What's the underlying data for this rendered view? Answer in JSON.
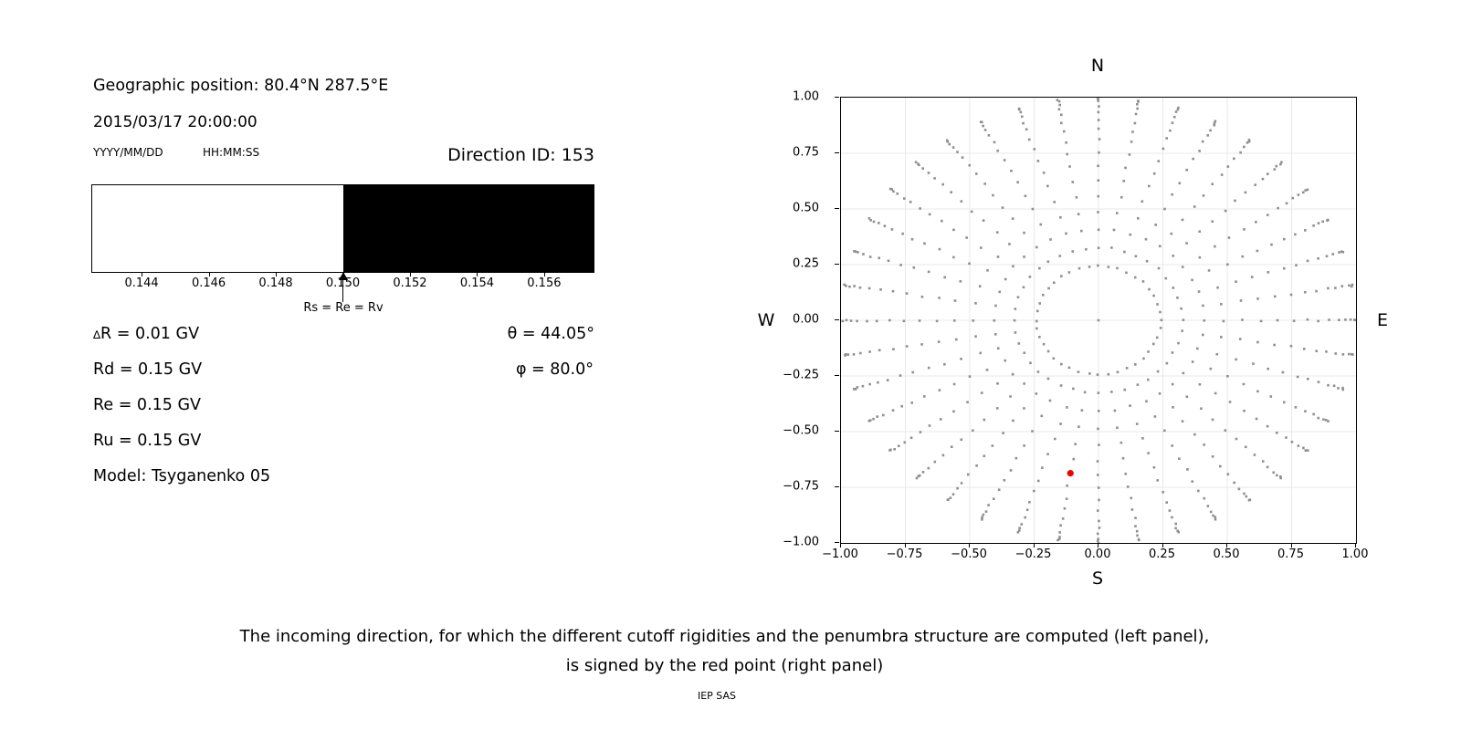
{
  "left_panel": {
    "geo_position": "Geographic position: 80.4°N 287.5°E",
    "datetime": "2015/03/17 20:00:00",
    "date_format_label": "YYYY/MM/DD",
    "time_format_label": "HH:MM:SS",
    "direction_id": "Direction ID: 153",
    "params": {
      "delta_symbol": "∆",
      "delta_rest": "R = 0.01 GV",
      "rows_left": [
        "Rd = 0.15 GV",
        "Re = 0.15 GV",
        "Ru = 0.15 GV"
      ],
      "model": "Model: Tsyganenko 05",
      "theta": "θ = 44.05°",
      "phi": "φ = 80.0°"
    }
  },
  "caption": {
    "line1": "The incoming direction, for which the different cutoff rigidities and the penumbra structure are computed (left panel),",
    "line2": "is signed by the red point (right panel)",
    "credit": "IEP SAS"
  },
  "chart_data": [
    {
      "type": "bar",
      "title": "",
      "xlabel": "",
      "x_range": [
        0.1425,
        0.1575
      ],
      "xticks_values": [
        0.144,
        0.146,
        0.148,
        0.15,
        0.152,
        0.154,
        0.156
      ],
      "xticks_labels": [
        "0.144",
        "0.146",
        "0.148",
        "0.150",
        "0.152",
        "0.154",
        "0.156"
      ],
      "segments": [
        {
          "from": 0.1425,
          "to": 0.15,
          "color": "#ffffff",
          "meaning": "allowed band below Rs"
        },
        {
          "from": 0.15,
          "to": 0.1575,
          "color": "#000000",
          "meaning": "forbidden band above Rs"
        }
      ],
      "annotation": {
        "x": 0.15,
        "label": "Rs = Re = Rv"
      }
    },
    {
      "type": "scatter",
      "xlim": [
        -1,
        1
      ],
      "ylim": [
        -1,
        1
      ],
      "grid": true,
      "grid_values": [
        -0.75,
        -0.5,
        -0.25,
        0,
        0.25,
        0.5,
        0.75
      ],
      "xticks_values": [
        -1,
        -0.75,
        -0.5,
        -0.25,
        0,
        0.25,
        0.5,
        0.75,
        1
      ],
      "xticks_labels": [
        "−1.00",
        "−0.75",
        "−0.50",
        "−0.25",
        "0.00",
        "0.25",
        "0.50",
        "0.75",
        "1.00"
      ],
      "yticks_values": [
        1,
        0.75,
        0.5,
        0.25,
        0,
        -0.25,
        -0.5,
        -0.75,
        -1
      ],
      "yticks_labels": [
        "1.00",
        "0.75",
        "0.50",
        "0.25",
        "0.00",
        "−0.25",
        "−0.50",
        "−0.75",
        "−1.00"
      ],
      "cardinal": {
        "top": "N",
        "bottom": "S",
        "left": "W",
        "right": "E"
      },
      "dot_color": "#8f8f8f",
      "direction_grid": {
        "description": "grid of incoming directions: radius = sin(zenith), azimuth clockwise from N",
        "center_dot": true,
        "azimuth_start_deg": 0,
        "azimuth_step_deg": 9,
        "azimuth_count": 40,
        "zenith_start_deg": 14.05,
        "zenith_step_deg": 5,
        "zenith_count": 16,
        "jitter": 0.004
      },
      "highlight_point": {
        "x": -0.109,
        "y": -0.687,
        "azimuth_deg": 189,
        "zenith_deg": 44.05,
        "color": "#ee0000",
        "meaning": "incoming direction ID 153"
      }
    }
  ]
}
